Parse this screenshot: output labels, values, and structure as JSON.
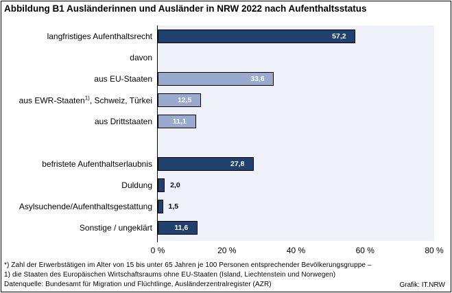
{
  "title": "Abbildung B1  Ausländerinnen und Ausländer in NRW 2022 nach Aufenthaltsstatus",
  "chart_data": {
    "type": "bar",
    "orientation": "horizontal",
    "categories": [
      {
        "label": "langfristiges Aufenthaltsrecht",
        "sup": "",
        "label_rest": "",
        "value": 57.2,
        "value_label": "57,2",
        "style": "dark"
      },
      {
        "label": "davon",
        "sup": "",
        "label_rest": "",
        "value": null,
        "value_label": "",
        "style": "none"
      },
      {
        "label": "aus EU-Staaten",
        "sup": "",
        "label_rest": "",
        "value": 33.6,
        "value_label": "33,6",
        "style": "light"
      },
      {
        "label": "aus EWR-Staaten",
        "sup": "1)",
        "label_rest": ", Schweiz, Türkei",
        "value": 12.5,
        "value_label": "12,5",
        "style": "light"
      },
      {
        "label": "aus Drittstaaten",
        "sup": "",
        "label_rest": "",
        "value": 11.1,
        "value_label": "11,1",
        "style": "light"
      },
      {
        "label": "",
        "sup": "",
        "label_rest": "",
        "value": null,
        "value_label": "",
        "style": "none"
      },
      {
        "label": "befristete Aufenthaltserlaubnis",
        "sup": "",
        "label_rest": "",
        "value": 27.8,
        "value_label": "27,8",
        "style": "dark"
      },
      {
        "label": "Duldung",
        "sup": "",
        "label_rest": "",
        "value": 2.0,
        "value_label": "2,0",
        "style": "dark"
      },
      {
        "label": "Asylsuchende/Aufenthaltsgestattung",
        "sup": "",
        "label_rest": "",
        "value": 1.5,
        "value_label": "1,5",
        "style": "dark"
      },
      {
        "label": "Sonstige / ungeklärt",
        "sup": "",
        "label_rest": "",
        "value": 11.6,
        "value_label": "11,6",
        "style": "dark"
      }
    ],
    "xlim": [
      0,
      80
    ],
    "xticks": [
      {
        "value": 0,
        "label": "0 %"
      },
      {
        "value": 20,
        "label": "20 %"
      },
      {
        "value": 40,
        "label": "40 %"
      },
      {
        "value": 60,
        "label": "60 %"
      },
      {
        "value": 80,
        "label": "80 %"
      }
    ],
    "xlabel": "",
    "ylabel": "",
    "grid": false
  },
  "colors": {
    "bar_dark": "#20406e",
    "bar_light": "#9aa9ce",
    "plot_background": "#eef2f8"
  },
  "footnotes": [
    "*) Zahl der Erwerbstätigen im Alter von 15 bis unter 65 Jahren je 100 Personen entsprechender Bevölkerungsgruppe –",
    "1) die Staaten des Europäischen Wirtschaftsraums ohne EU-Staaten   (Island, Liechtenstein und Norwegen)",
    "Datenquelle:  Bundesamt für Migration und Flüchtlinge,  Ausländerzentralregister (AZR)"
  ],
  "credit": "Grafik: IT.NRW"
}
